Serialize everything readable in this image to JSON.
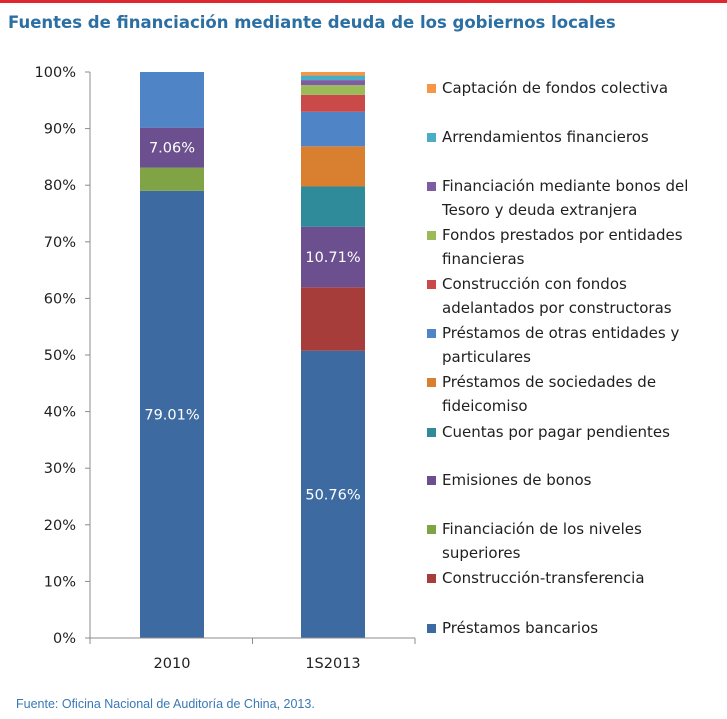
{
  "title": "Fuentes de financiación mediante deuda de los gobiernos locales",
  "source": "Fuente: Oficina Nacional de Auditoría de China, 2013.",
  "chart_data": {
    "type": "bar",
    "stacked": true,
    "categories": [
      "2010",
      "1S2013"
    ],
    "ylim": [
      0,
      100
    ],
    "yticks": [
      "0%",
      "10%",
      "20%",
      "30%",
      "40%",
      "50%",
      "60%",
      "70%",
      "80%",
      "90%",
      "100%"
    ],
    "grid": false,
    "legend_position": "right",
    "series": [
      {
        "name": "Préstamos bancarios",
        "color": "#3d6aa0",
        "values": [
          79.01,
          50.76
        ],
        "labels": [
          "79.01%",
          "50.76%"
        ]
      },
      {
        "name": "Construcción-transferencia",
        "color": "#a63d3a",
        "values": [
          0,
          11.2
        ],
        "labels": [
          "",
          ""
        ]
      },
      {
        "name": "Financiación de los niveles superiores",
        "color": "#7fa345",
        "values": [
          4.1,
          0
        ],
        "labels": [
          "",
          ""
        ]
      },
      {
        "name": "Emisiones de bonos",
        "color": "#6b4f8e",
        "values": [
          7.06,
          10.71
        ],
        "labels": [
          "7.06%",
          "10.71%"
        ]
      },
      {
        "name": "Cuentas por pagar pendientes",
        "color": "#2f8b9a",
        "values": [
          0,
          7.1
        ],
        "labels": [
          "",
          ""
        ]
      },
      {
        "name": "Préstamos de sociedades de fideicomiso",
        "color": "#d98030",
        "values": [
          0,
          7.1
        ],
        "labels": [
          "",
          ""
        ]
      },
      {
        "name": "Préstamos de otras entidades y particulares",
        "color": "#4f84c6",
        "values": [
          9.83,
          6.1
        ],
        "labels": [
          "",
          ""
        ]
      },
      {
        "name": "Construcción con fondos adelantados por constructoras",
        "color": "#c94a48",
        "values": [
          0,
          3.0
        ],
        "labels": [
          "",
          ""
        ]
      },
      {
        "name": "Fondos prestados por entidades financieras",
        "color": "#9bbb59",
        "values": [
          0,
          1.7
        ],
        "labels": [
          "",
          ""
        ]
      },
      {
        "name": "Financiación mediante bonos del Tesoro y deuda extranjera",
        "color": "#7d5d9f",
        "values": [
          0,
          0.9
        ],
        "labels": [
          "",
          ""
        ]
      },
      {
        "name": "Arrendamientos financieros",
        "color": "#4bacc6",
        "values": [
          0,
          0.8
        ],
        "labels": [
          "",
          ""
        ]
      },
      {
        "name": "Captación de fondos colectiva",
        "color": "#f79646",
        "values": [
          0,
          0.63
        ],
        "labels": [
          "",
          ""
        ]
      }
    ]
  }
}
